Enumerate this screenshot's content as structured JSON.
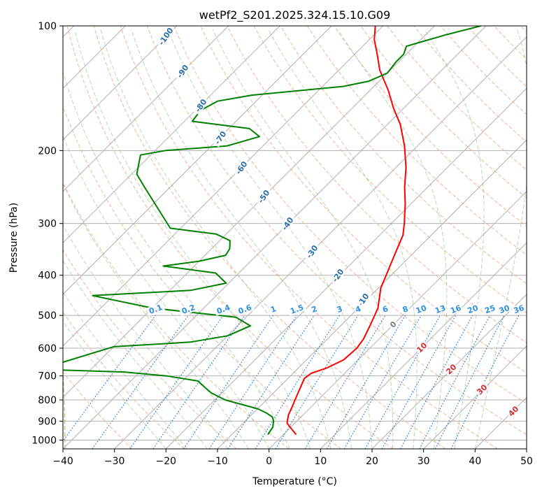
{
  "chart_data": {
    "type": "line",
    "title": "wetPf2_S201.2025.324.15.10.G09",
    "xlabel": "Temperature (°C)",
    "ylabel": "Pressure (hPa)",
    "xlim": [
      -40,
      50
    ],
    "ylim": [
      1050,
      100
    ],
    "y_scale": "log",
    "skew_t": true,
    "grid": true,
    "x_ticks": [
      -40,
      -30,
      -20,
      -10,
      0,
      10,
      20,
      30,
      40,
      50
    ],
    "y_ticks": [
      100,
      200,
      300,
      400,
      500,
      600,
      700,
      800,
      900,
      1000
    ],
    "series": [
      {
        "color": "#ff0000",
        "points": [
          [
            2.5,
            970
          ],
          [
            0.5,
            940
          ],
          [
            -1.5,
            910
          ],
          [
            -2.8,
            870
          ],
          [
            -3.7,
            830
          ],
          [
            -4.7,
            790
          ],
          [
            -6.0,
            740
          ],
          [
            -6.8,
            710
          ],
          [
            -6.5,
            690
          ],
          [
            -4.5,
            670
          ],
          [
            -2.8,
            640
          ],
          [
            -2.5,
            600
          ],
          [
            -3.0,
            570
          ],
          [
            -4.3,
            530
          ],
          [
            -6.2,
            480
          ],
          [
            -9.5,
            430
          ],
          [
            -11.5,
            390
          ],
          [
            -13.7,
            350
          ],
          [
            -15.5,
            320
          ],
          [
            -17.5,
            300
          ],
          [
            -21.0,
            270
          ],
          [
            -24.5,
            245
          ],
          [
            -28.0,
            220
          ],
          [
            -32.5,
            195
          ],
          [
            -37.5,
            173
          ],
          [
            -42.0,
            158
          ],
          [
            -46.5,
            143
          ],
          [
            -52.0,
            128
          ],
          [
            -56.0,
            116
          ],
          [
            -59.0,
            108
          ],
          [
            -61.5,
            100
          ]
        ]
      },
      {
        "color": "#008000",
        "points": [
          [
            -3.0,
            970
          ],
          [
            -3.5,
            930
          ],
          [
            -4.5,
            900
          ],
          [
            -5.5,
            880
          ],
          [
            -7.5,
            860
          ],
          [
            -10.0,
            840
          ],
          [
            -14.0,
            820
          ],
          [
            -18.0,
            800
          ],
          [
            -22.0,
            770
          ],
          [
            -24.0,
            750
          ],
          [
            -27.0,
            720
          ],
          [
            -34.0,
            700
          ],
          [
            -43.0,
            685
          ],
          [
            -60.0,
            675
          ],
          [
            -50.0,
            595
          ],
          [
            -36.0,
            580
          ],
          [
            -30.0,
            560
          ],
          [
            -27.5,
            530
          ],
          [
            -32.0,
            505
          ],
          [
            -50.0,
            480
          ],
          [
            -64.0,
            448
          ],
          [
            -46.0,
            435
          ],
          [
            -40.5,
            418
          ],
          [
            -44.5,
            395
          ],
          [
            -56.0,
            380
          ],
          [
            -50.0,
            370
          ],
          [
            -46.0,
            358
          ],
          [
            -46.5,
            345
          ],
          [
            -48.0,
            330
          ],
          [
            -52.0,
            318
          ],
          [
            -62.0,
            308
          ],
          [
            -75.0,
            245
          ],
          [
            -79.0,
            228
          ],
          [
            -82.0,
            205
          ],
          [
            -78.0,
            200
          ],
          [
            -67.0,
            195
          ],
          [
            -62.5,
            185
          ],
          [
            -66.0,
            177
          ],
          [
            -78.5,
            170
          ],
          [
            -79.0,
            160
          ],
          [
            -77.5,
            152
          ],
          [
            -72.0,
            147
          ],
          [
            -56.0,
            140
          ],
          [
            -52.0,
            136
          ],
          [
            -50.0,
            130
          ],
          [
            -50.5,
            122
          ],
          [
            -50.5,
            117
          ],
          [
            -51.5,
            112
          ],
          [
            -50.0,
            110
          ],
          [
            -46.0,
            105
          ],
          [
            -41.0,
            100
          ]
        ]
      }
    ],
    "line_labels": {
      "dry_adiabats": [
        "-100",
        "-90",
        "-80",
        "-70",
        "-60",
        "-50",
        "-40",
        "-30",
        "-20",
        "-10"
      ],
      "mixing_ratios": [
        "0.1",
        "0.2",
        "0.4",
        "0.6",
        "1",
        "1.5",
        "2",
        "3",
        "4",
        "6",
        "8",
        "10",
        "13",
        "16",
        "20",
        "25",
        "30",
        "36"
      ],
      "moist_adiabats": [
        "0",
        "10",
        "20",
        "30",
        "40"
      ]
    }
  }
}
